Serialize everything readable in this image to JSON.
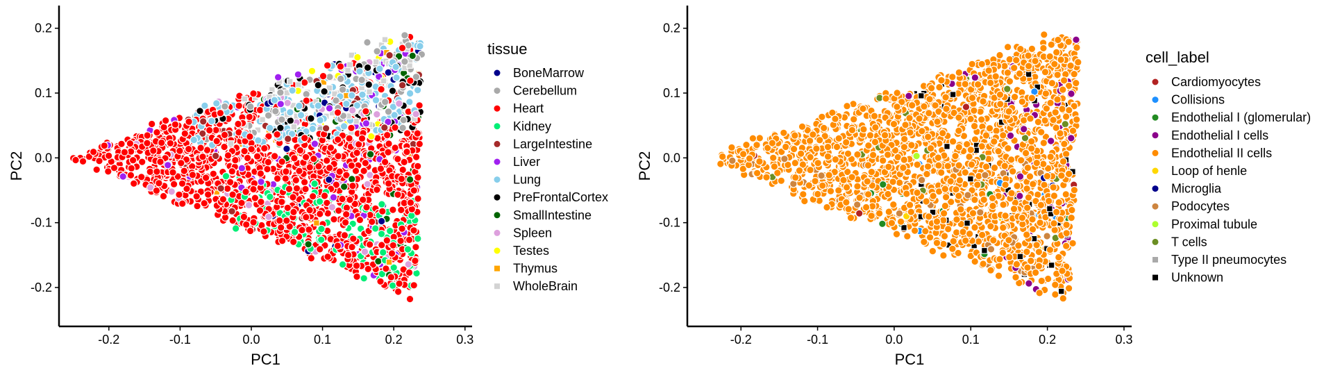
{
  "chart_data": [
    {
      "type": "scatter",
      "xlabel": "PC1",
      "ylabel": "PC2",
      "xlim": [
        -0.27,
        0.31
      ],
      "ylim": [
        -0.26,
        0.235
      ],
      "xticks": [
        {
          "value": -0.2,
          "label": "-0.2"
        },
        {
          "value": -0.1,
          "label": "-0.1"
        },
        {
          "value": 0.0,
          "label": "0.0"
        },
        {
          "value": 0.1,
          "label": "0.1"
        },
        {
          "value": 0.2,
          "label": "0.2"
        },
        {
          "value": 0.3,
          "label": "0.3"
        }
      ],
      "yticks": [
        {
          "value": 0.2,
          "label": "0.2"
        },
        {
          "value": 0.1,
          "label": "0.1"
        },
        {
          "value": 0.0,
          "label": "0.0"
        },
        {
          "value": -0.1,
          "label": "-0.1"
        },
        {
          "value": -0.2,
          "label": "-0.2"
        }
      ],
      "grid": false,
      "legend": {
        "title": "tissue",
        "placement": "right",
        "entries": [
          {
            "label": "BoneMarrow",
            "color": "#00008B",
            "shape": "circle"
          },
          {
            "label": "Cerebellum",
            "color": "#A9A9A9",
            "shape": "circle"
          },
          {
            "label": "Heart",
            "color": "#FF0000",
            "shape": "circle"
          },
          {
            "label": "Kidney",
            "color": "#00EE76",
            "shape": "circle"
          },
          {
            "label": "LargeIntestine",
            "color": "#A52A2A",
            "shape": "circle"
          },
          {
            "label": "Liver",
            "color": "#A020F0",
            "shape": "circle"
          },
          {
            "label": "Lung",
            "color": "#87CEEB",
            "shape": "circle"
          },
          {
            "label": "PreFrontalCortex",
            "color": "#000000",
            "shape": "circle"
          },
          {
            "label": "SmallIntestine",
            "color": "#006400",
            "shape": "circle"
          },
          {
            "label": "Spleen",
            "color": "#DDA0DD",
            "shape": "circle"
          },
          {
            "label": "Testes",
            "color": "#FFFF00",
            "shape": "circle"
          },
          {
            "label": "Thymus",
            "color": "#FFA500",
            "shape": "square"
          },
          {
            "label": "WholeBrain",
            "color": "#D3D3D3",
            "shape": "square"
          }
        ]
      },
      "cloud": {
        "apex": [
          -0.255,
          0.0
        ],
        "top_vertex": [
          0.245,
          0.21
        ],
        "bottom_vertex": [
          0.225,
          -0.23
        ],
        "points_approx": 2200
      },
      "groups": [
        {
          "label": "Heart",
          "weight": 0.52,
          "region": "lower_left"
        },
        {
          "label": "Kidney",
          "weight": 0.14,
          "region": "bottom_right"
        },
        {
          "label": "Lung",
          "weight": 0.11,
          "region": "top"
        },
        {
          "label": "Cerebellum",
          "weight": 0.05,
          "region": "top"
        },
        {
          "label": "PreFrontalCortex",
          "weight": 0.04,
          "region": "top"
        },
        {
          "label": "WholeBrain",
          "weight": 0.05,
          "region": "top"
        },
        {
          "label": "Liver",
          "weight": 0.02,
          "region": "any"
        },
        {
          "label": "BoneMarrow",
          "weight": 0.01,
          "region": "right"
        },
        {
          "label": "SmallIntestine",
          "weight": 0.01,
          "region": "right"
        },
        {
          "label": "LargeIntestine",
          "weight": 0.01,
          "region": "any"
        },
        {
          "label": "Spleen",
          "weight": 0.015,
          "region": "any"
        },
        {
          "label": "Testes",
          "weight": 0.01,
          "region": "top"
        },
        {
          "label": "Thymus",
          "weight": 0.005,
          "region": "any"
        }
      ]
    },
    {
      "type": "scatter",
      "xlabel": "PC1",
      "ylabel": "PC2",
      "xlim": [
        -0.27,
        0.31
      ],
      "ylim": [
        -0.26,
        0.235
      ],
      "xticks": [
        {
          "value": -0.2,
          "label": "-0.2"
        },
        {
          "value": -0.1,
          "label": "-0.1"
        },
        {
          "value": 0.0,
          "label": "0.0"
        },
        {
          "value": 0.1,
          "label": "0.1"
        },
        {
          "value": 0.2,
          "label": "0.2"
        },
        {
          "value": 0.3,
          "label": "0.3"
        }
      ],
      "yticks": [
        {
          "value": 0.2,
          "label": "0.2"
        },
        {
          "value": 0.1,
          "label": "0.1"
        },
        {
          "value": 0.0,
          "label": "0.0"
        },
        {
          "value": -0.1,
          "label": "-0.1"
        },
        {
          "value": -0.2,
          "label": "-0.2"
        }
      ],
      "grid": false,
      "legend": {
        "title": "cell_label",
        "placement": "right",
        "entries": [
          {
            "label": "Cardiomyocytes",
            "color": "#B22222",
            "shape": "circle"
          },
          {
            "label": "Collisions",
            "color": "#1E90FF",
            "shape": "circle"
          },
          {
            "label": "Endothelial I (glomerular)",
            "color": "#228B22",
            "shape": "circle"
          },
          {
            "label": "Endothelial I cells",
            "color": "#8B008B",
            "shape": "circle"
          },
          {
            "label": "Endothelial II cells",
            "color": "#FF8C00",
            "shape": "circle"
          },
          {
            "label": "Loop of henle",
            "color": "#FFD700",
            "shape": "circle"
          },
          {
            "label": "Microglia",
            "color": "#00008B",
            "shape": "circle"
          },
          {
            "label": "Podocytes",
            "color": "#CD853F",
            "shape": "circle"
          },
          {
            "label": "Proximal tubule",
            "color": "#ADFF2F",
            "shape": "circle"
          },
          {
            "label": "T cells",
            "color": "#6B8E23",
            "shape": "circle"
          },
          {
            "label": "Type II pneumocytes",
            "color": "#A9A9A9",
            "shape": "square"
          },
          {
            "label": "Unknown",
            "color": "#000000",
            "shape": "square"
          }
        ]
      },
      "cloud": {
        "apex": [
          -0.255,
          0.0
        ],
        "top_vertex": [
          0.245,
          0.21
        ],
        "bottom_vertex": [
          0.225,
          -0.23
        ],
        "points_approx": 2200
      },
      "groups": [
        {
          "label": "Endothelial II cells",
          "weight": 0.8,
          "region": "any"
        },
        {
          "label": "Podocytes",
          "weight": 0.06,
          "region": "lower"
        },
        {
          "label": "Endothelial I cells",
          "weight": 0.06,
          "region": "right_edge"
        },
        {
          "label": "Unknown",
          "weight": 0.035,
          "region": "right"
        },
        {
          "label": "Endothelial I (glomerular)",
          "weight": 0.02,
          "region": "bottom_right"
        },
        {
          "label": "T cells",
          "weight": 0.008,
          "region": "any"
        },
        {
          "label": "Collisions",
          "weight": 0.003,
          "region": "any"
        },
        {
          "label": "Microglia",
          "weight": 0.002,
          "region": "right"
        },
        {
          "label": "Type II pneumocytes",
          "weight": 0.002,
          "region": "top"
        },
        {
          "label": "Loop of henle",
          "weight": 0.002,
          "region": "any"
        },
        {
          "label": "Cardiomyocytes",
          "weight": 0.002,
          "region": "any"
        },
        {
          "label": "Proximal tubule",
          "weight": 0.001,
          "region": "any"
        }
      ]
    }
  ]
}
